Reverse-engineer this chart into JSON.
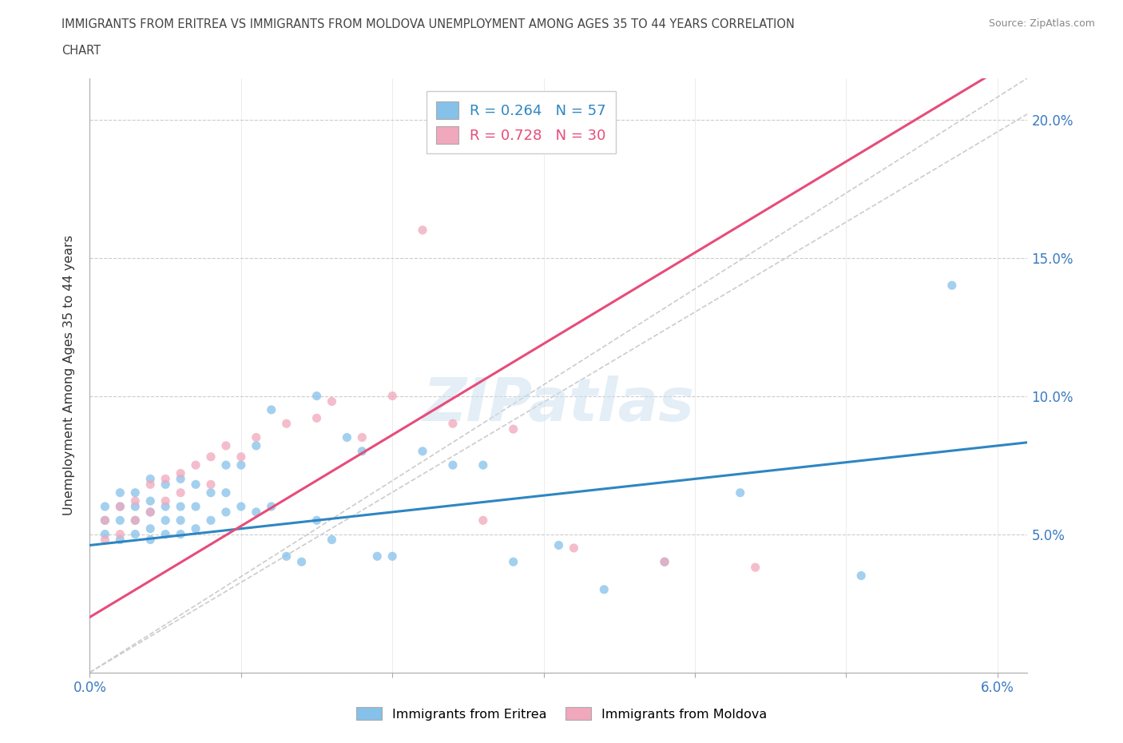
{
  "title_line1": "IMMIGRANTS FROM ERITREA VS IMMIGRANTS FROM MOLDOVA UNEMPLOYMENT AMONG AGES 35 TO 44 YEARS CORRELATION",
  "title_line2": "CHART",
  "source": "Source: ZipAtlas.com",
  "ylabel": "Unemployment Among Ages 35 to 44 years",
  "xlim": [
    0.0,
    0.062
  ],
  "ylim": [
    0.0,
    0.215
  ],
  "xtick_positions": [
    0.0,
    0.01,
    0.02,
    0.03,
    0.04,
    0.05,
    0.06
  ],
  "xticklabels": [
    "0.0%",
    "",
    "",
    "",
    "",
    "",
    "6.0%"
  ],
  "ytick_positions": [
    0.0,
    0.05,
    0.1,
    0.15,
    0.2
  ],
  "yticklabels_right": [
    "",
    "5.0%",
    "10.0%",
    "15.0%",
    "20.0%"
  ],
  "legend_eritrea_R": "0.264",
  "legend_eritrea_N": "57",
  "legend_moldova_R": "0.728",
  "legend_moldova_N": "30",
  "color_eritrea": "#85c1e9",
  "color_moldova": "#f1a7bc",
  "trendline_eritrea_color": "#2e86c1",
  "trendline_moldova_color": "#e74c7a",
  "trendline_ref_color": "#cccccc",
  "watermark": "ZIPatlas",
  "eritrea_x": [
    0.001,
    0.001,
    0.001,
    0.002,
    0.002,
    0.002,
    0.002,
    0.003,
    0.003,
    0.003,
    0.003,
    0.004,
    0.004,
    0.004,
    0.004,
    0.004,
    0.005,
    0.005,
    0.005,
    0.005,
    0.006,
    0.006,
    0.006,
    0.006,
    0.007,
    0.007,
    0.007,
    0.008,
    0.008,
    0.009,
    0.009,
    0.009,
    0.01,
    0.01,
    0.011,
    0.011,
    0.012,
    0.012,
    0.013,
    0.014,
    0.015,
    0.015,
    0.016,
    0.017,
    0.018,
    0.019,
    0.02,
    0.022,
    0.024,
    0.026,
    0.028,
    0.031,
    0.034,
    0.038,
    0.043,
    0.051,
    0.057
  ],
  "eritrea_y": [
    0.05,
    0.055,
    0.06,
    0.048,
    0.055,
    0.06,
    0.065,
    0.05,
    0.055,
    0.06,
    0.065,
    0.048,
    0.052,
    0.058,
    0.062,
    0.07,
    0.05,
    0.055,
    0.06,
    0.068,
    0.05,
    0.055,
    0.06,
    0.07,
    0.052,
    0.06,
    0.068,
    0.055,
    0.065,
    0.058,
    0.065,
    0.075,
    0.06,
    0.075,
    0.058,
    0.082,
    0.06,
    0.095,
    0.042,
    0.04,
    0.1,
    0.055,
    0.048,
    0.085,
    0.08,
    0.042,
    0.042,
    0.08,
    0.075,
    0.075,
    0.04,
    0.046,
    0.03,
    0.04,
    0.065,
    0.035,
    0.14
  ],
  "moldova_x": [
    0.001,
    0.001,
    0.002,
    0.002,
    0.003,
    0.003,
    0.004,
    0.004,
    0.005,
    0.005,
    0.006,
    0.006,
    0.007,
    0.008,
    0.008,
    0.009,
    0.01,
    0.011,
    0.013,
    0.015,
    0.016,
    0.018,
    0.02,
    0.022,
    0.024,
    0.026,
    0.028,
    0.032,
    0.038,
    0.044
  ],
  "moldova_y": [
    0.048,
    0.055,
    0.05,
    0.06,
    0.055,
    0.062,
    0.058,
    0.068,
    0.062,
    0.07,
    0.065,
    0.072,
    0.075,
    0.078,
    0.068,
    0.082,
    0.078,
    0.085,
    0.09,
    0.092,
    0.098,
    0.085,
    0.1,
    0.16,
    0.09,
    0.055,
    0.088,
    0.045,
    0.04,
    0.038
  ]
}
